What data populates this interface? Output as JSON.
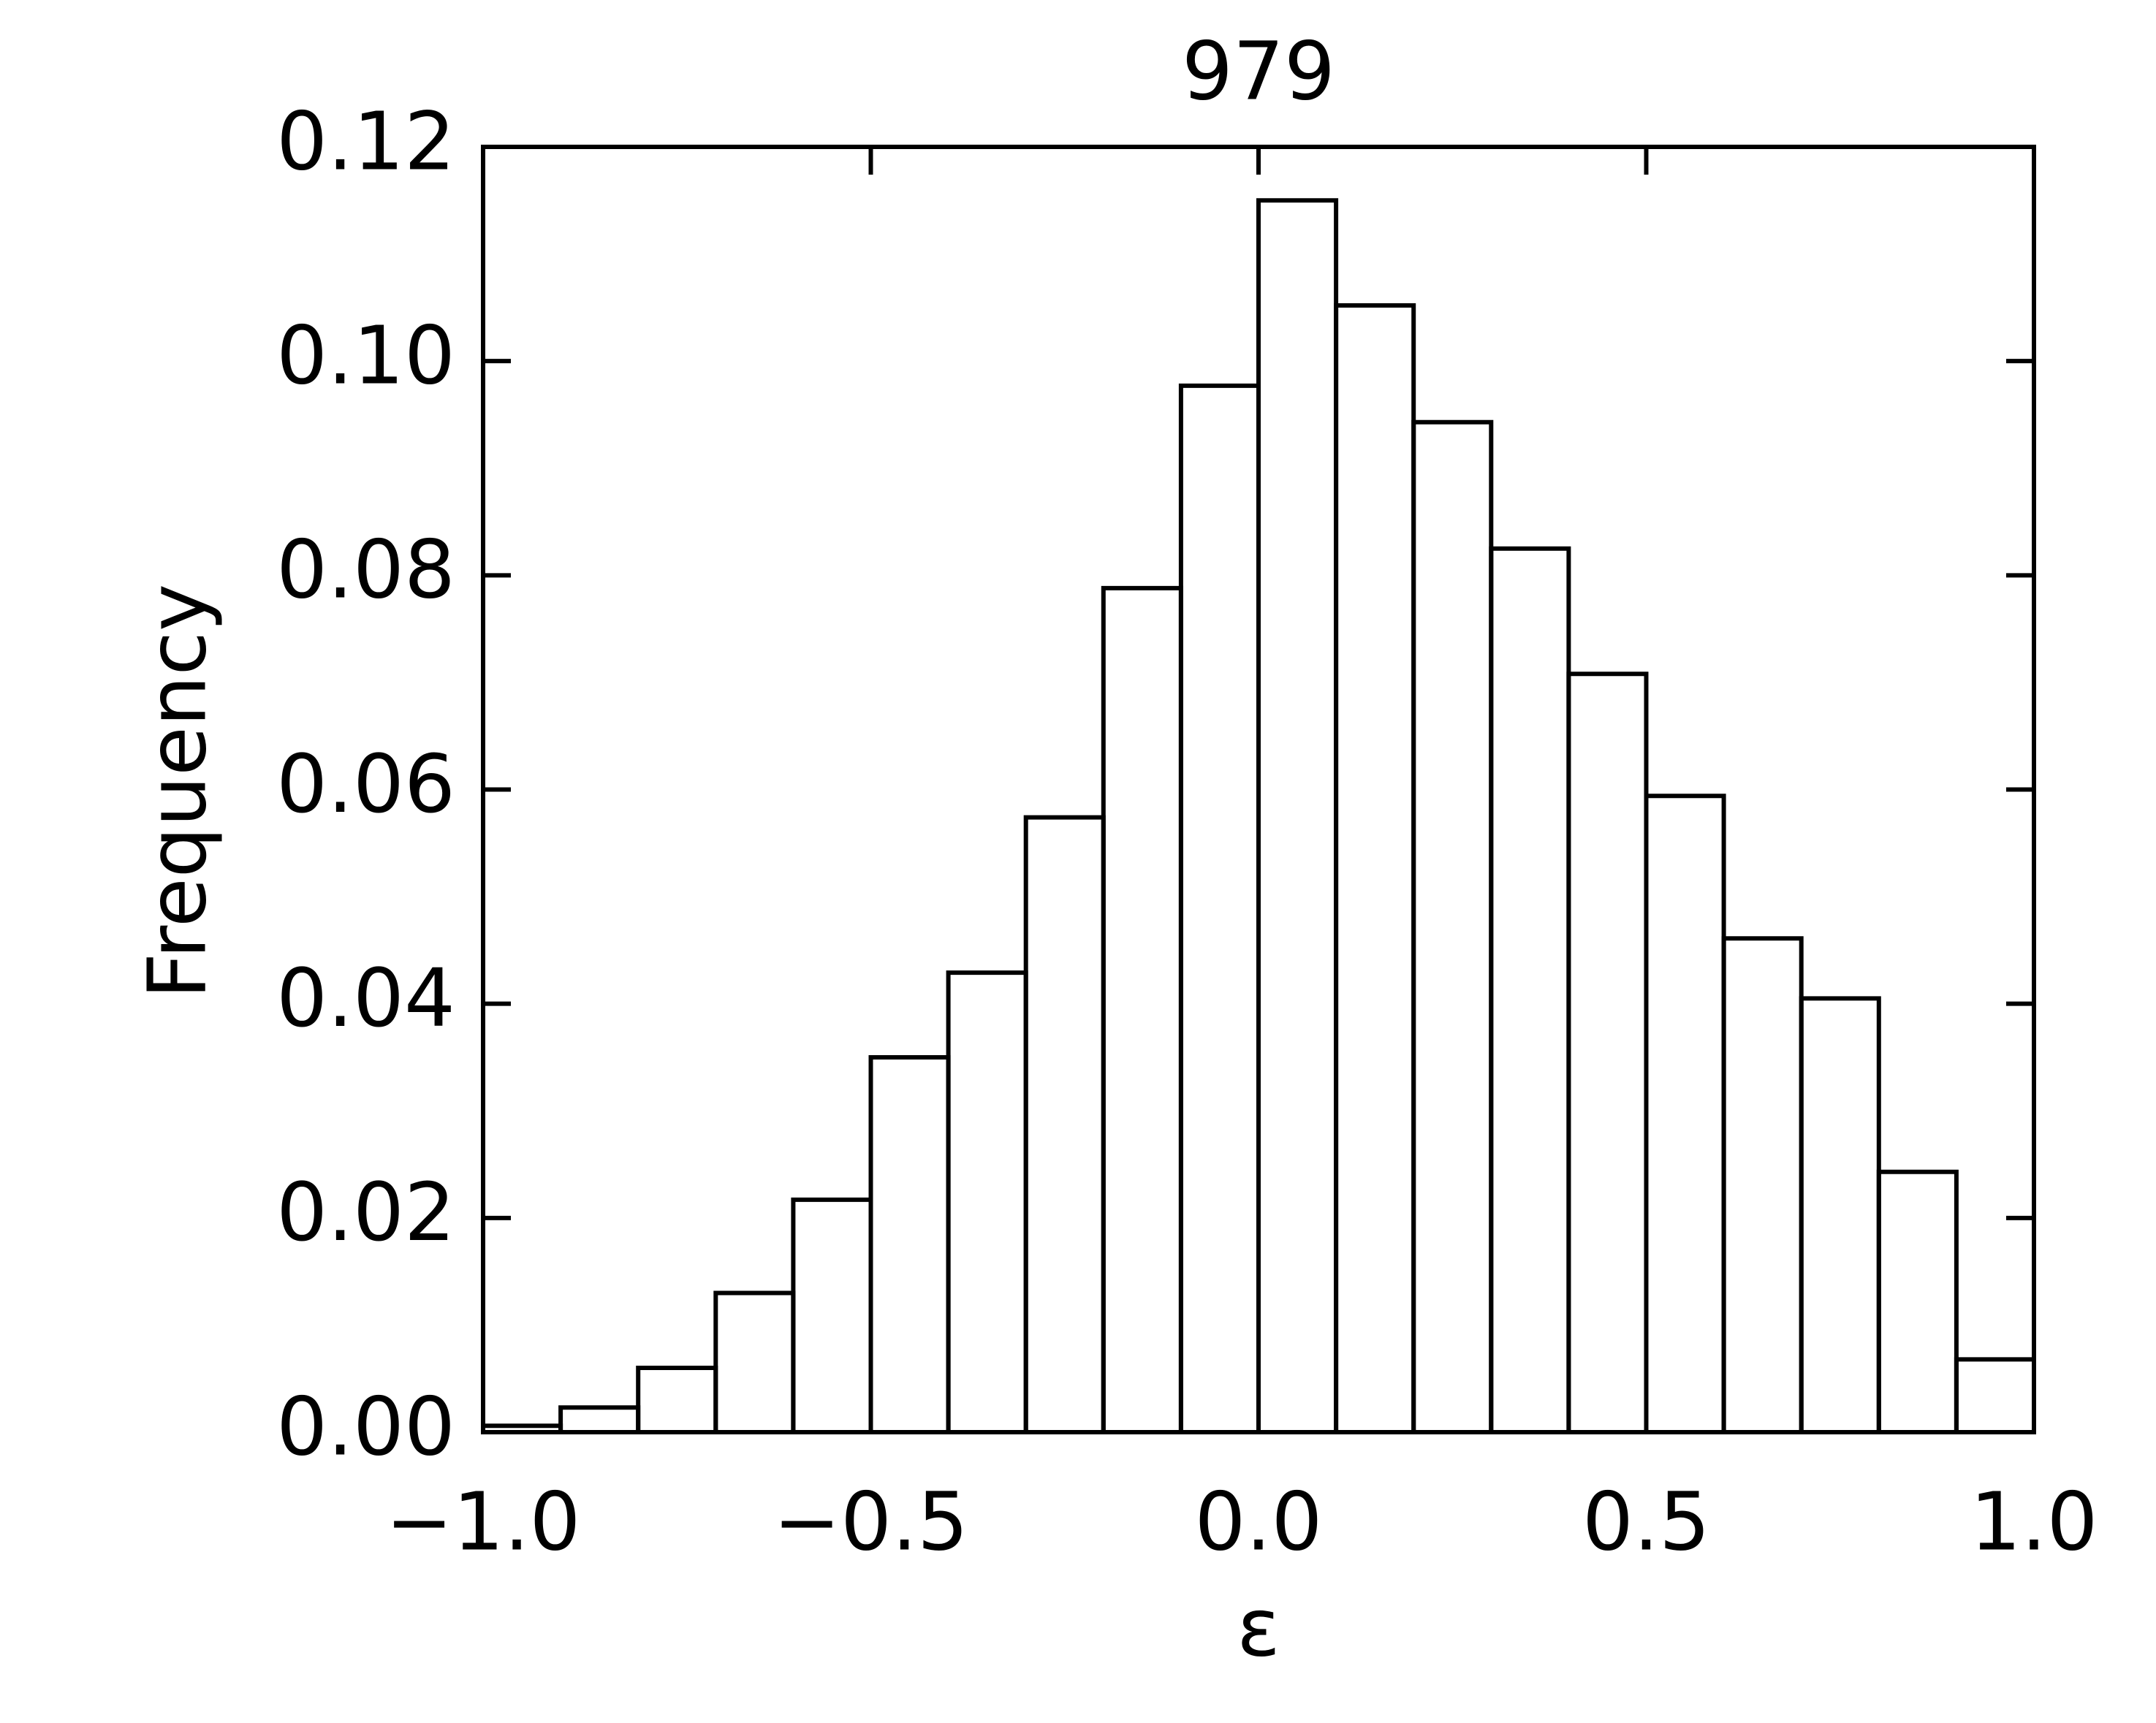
{
  "chart_data": {
    "type": "histogram",
    "title": "979",
    "x_label": "ε",
    "y_label": "Frequency",
    "bins": [
      -1.0,
      -0.9,
      -0.8,
      -0.7,
      -0.6,
      -0.5,
      -0.4,
      -0.3,
      -0.2,
      -0.1,
      0.0,
      0.1,
      0.2,
      0.3,
      0.4,
      0.5,
      0.6,
      0.7,
      0.8,
      0.9,
      1.0
    ],
    "values": [
      0.0006,
      0.0023,
      0.006,
      0.013,
      0.0217,
      0.035,
      0.0429,
      0.0574,
      0.0788,
      0.0977,
      0.115,
      0.1052,
      0.0943,
      0.0825,
      0.0708,
      0.0594,
      0.0461,
      0.0405,
      0.0243,
      0.0068
    ],
    "color": "#000000",
    "xlim": [
      -1.0,
      1.0
    ],
    "ylim": [
      0,
      0.12
    ],
    "xticks": [
      {
        "value": -1.0,
        "label": "−1.0"
      },
      {
        "value": -0.5,
        "label": "−0.5"
      },
      {
        "value": 0.0,
        "label": "0.0"
      },
      {
        "value": 0.5,
        "label": "0.5"
      },
      {
        "value": 1.0,
        "label": "1.0"
      }
    ],
    "yticks": [
      {
        "value": 0,
        "label": "0.00"
      },
      0.02,
      0.04,
      0.06,
      0.08,
      {
        "value": 0.1,
        "label": "0.10"
      },
      0.12
    ],
    "grid": false
  }
}
